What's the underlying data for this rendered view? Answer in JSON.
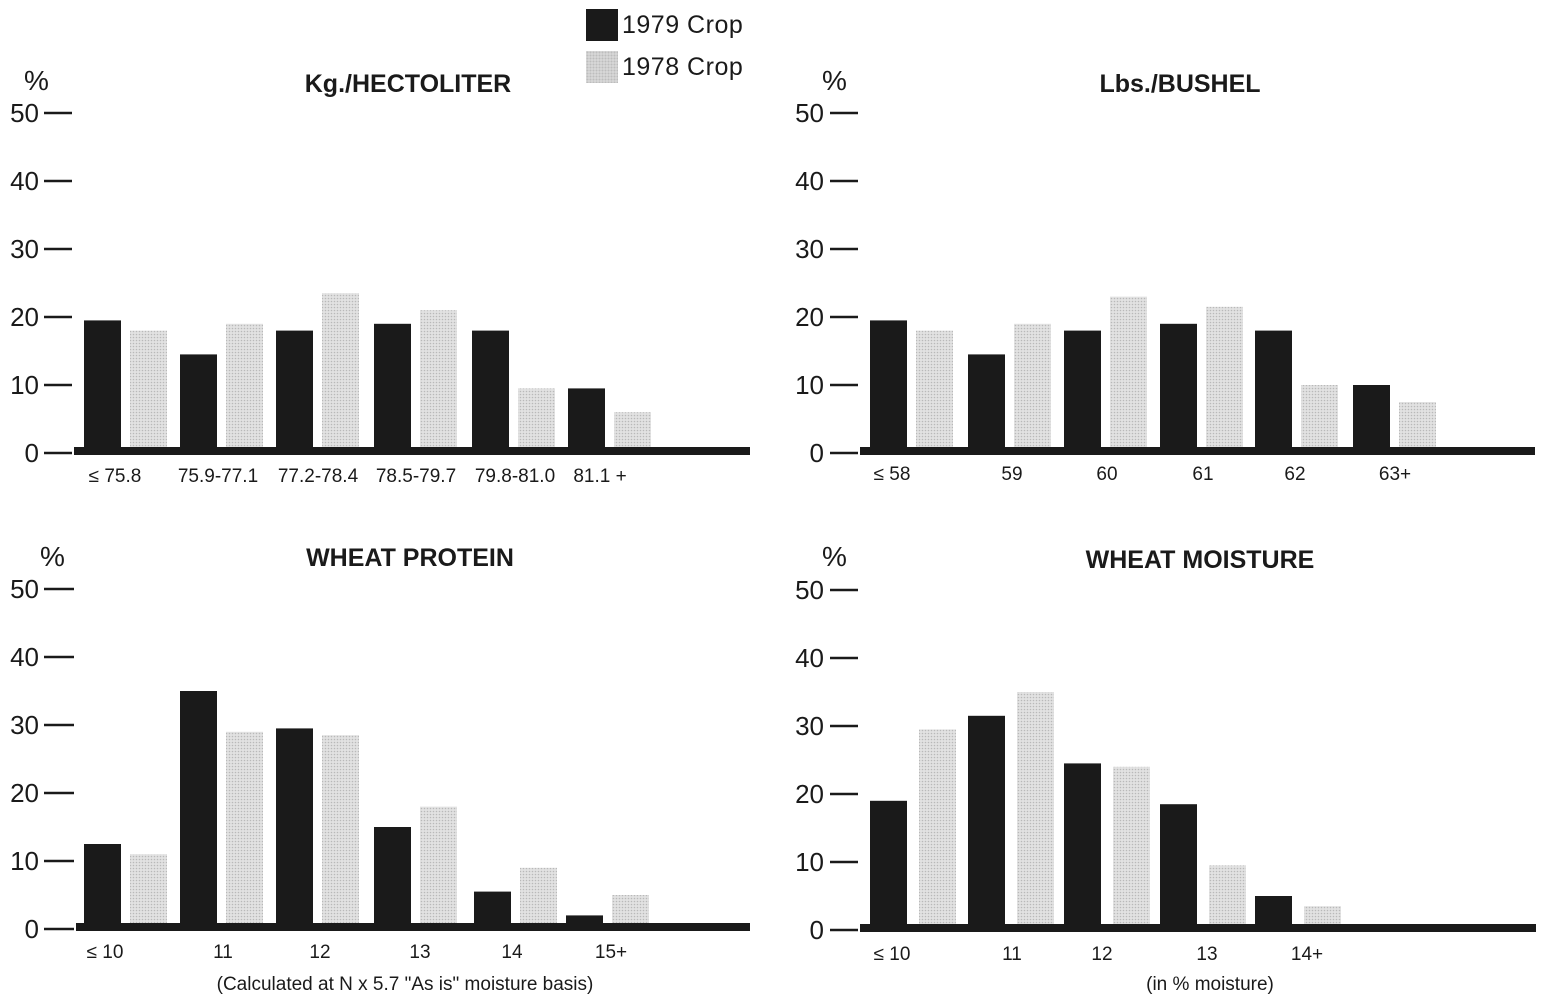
{
  "legend": {
    "series_1979": "1979 Crop",
    "series_1978": "1978 Crop",
    "colors": {
      "1979 Crop": "#1a1a1a",
      "1978 Crop": "#dcdcdc"
    }
  },
  "chart_data": [
    {
      "type": "bar",
      "title": "Kg./HECTOLITER",
      "ylabel": "%",
      "xlabel": "",
      "ylim": [
        0,
        50
      ],
      "yticks": [
        "0",
        "10",
        "20",
        "30",
        "40",
        "50"
      ],
      "categories": [
        "≤ 75.8",
        "75.9-77.1",
        "77.2-78.4",
        "78.5-79.7",
        "79.8-81.0",
        "81.1 +"
      ],
      "series": [
        {
          "name": "1979 Crop",
          "values": [
            19.5,
            14.5,
            18,
            19,
            18,
            9.5
          ]
        },
        {
          "name": "1978 Crop",
          "values": [
            18,
            19,
            23.5,
            21,
            9.5,
            6
          ]
        }
      ]
    },
    {
      "type": "bar",
      "title": "Lbs./BUSHEL",
      "ylabel": "%",
      "xlabel": "",
      "ylim": [
        0,
        50
      ],
      "yticks": [
        "0",
        "10",
        "20",
        "30",
        "40",
        "50"
      ],
      "categories": [
        "≤ 58",
        "59",
        "60",
        "61",
        "62",
        "63+"
      ],
      "series": [
        {
          "name": "1979 Crop",
          "values": [
            19.5,
            14.5,
            18,
            19,
            18,
            10
          ]
        },
        {
          "name": "1978 Crop",
          "values": [
            18,
            19,
            23,
            21.5,
            10,
            7.5
          ]
        }
      ]
    },
    {
      "type": "bar",
      "title": "WHEAT PROTEIN",
      "ylabel": "%",
      "xlabel": "(Calculated at N x 5.7 \"As is\" moisture basis)",
      "ylim": [
        0,
        50
      ],
      "yticks": [
        "0",
        "10",
        "20",
        "30",
        "40",
        "50"
      ],
      "categories": [
        "≤ 10",
        "11",
        "12",
        "13",
        "14",
        "15+"
      ],
      "series": [
        {
          "name": "1979 Crop",
          "values": [
            12.5,
            35,
            29.5,
            15,
            5.5,
            2
          ]
        },
        {
          "name": "1978 Crop",
          "values": [
            11,
            29,
            28.5,
            18,
            9,
            5
          ]
        }
      ]
    },
    {
      "type": "bar",
      "title": "WHEAT MOISTURE",
      "ylabel": "%",
      "xlabel": "(in % moisture)",
      "ylim": [
        0,
        50
      ],
      "yticks": [
        "0",
        "10",
        "20",
        "30",
        "40",
        "50"
      ],
      "categories": [
        "≤ 10",
        "11",
        "12",
        "13",
        "14+"
      ],
      "series": [
        {
          "name": "1979 Crop",
          "values": [
            19,
            31.5,
            24.5,
            18.5,
            5
          ]
        },
        {
          "name": "1978 Crop",
          "values": [
            29.5,
            35,
            24,
            9.5,
            3.5
          ]
        }
      ]
    }
  ]
}
